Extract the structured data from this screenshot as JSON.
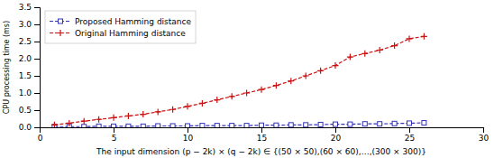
{
  "chart_data": {
    "type": "line",
    "xlabel": "The input dimension (p − 2k) × (q − 2k) ∈ {(50 × 50),(60 × 60),…,(300 × 300)}",
    "ylabel": "CPU processing time (ms)",
    "x": [
      1,
      2,
      3,
      4,
      5,
      6,
      7,
      8,
      9,
      10,
      11,
      12,
      13,
      14,
      15,
      16,
      17,
      18,
      19,
      20,
      21,
      22,
      23,
      24,
      25,
      26
    ],
    "series": [
      {
        "name": "Proposed Hamming distance",
        "color": "#3333bb",
        "marker": "square",
        "line_style": "dashed",
        "values": [
          0.02,
          0.02,
          0.02,
          0.03,
          0.03,
          0.03,
          0.03,
          0.04,
          0.04,
          0.04,
          0.05,
          0.05,
          0.05,
          0.05,
          0.06,
          0.06,
          0.07,
          0.07,
          0.08,
          0.09,
          0.09,
          0.1,
          0.1,
          0.11,
          0.12,
          0.13
        ]
      },
      {
        "name": "Original Hamming distance",
        "color": "#cc1111",
        "marker": "plus",
        "line_style": "dashed",
        "values": [
          0.07,
          0.12,
          0.18,
          0.23,
          0.28,
          0.33,
          0.38,
          0.45,
          0.52,
          0.61,
          0.7,
          0.8,
          0.9,
          1.0,
          1.1,
          1.22,
          1.35,
          1.5,
          1.65,
          1.8,
          2.05,
          2.15,
          2.25,
          2.38,
          2.58,
          2.65
        ]
      }
    ],
    "xlim": [
      0,
      30
    ],
    "ylim": [
      0,
      3.5
    ],
    "xticks": [
      0,
      5,
      10,
      15,
      20,
      25,
      30
    ],
    "yticks": [
      {
        "value": 0,
        "label": "0.0"
      },
      0.5,
      {
        "value": 1.0,
        "label": "1.0"
      },
      1.5,
      {
        "value": 2.0,
        "label": "2.0"
      },
      2.5,
      {
        "value": 3.0,
        "label": "3.0"
      },
      3.5
    ],
    "grid": false,
    "legend": "upper left"
  }
}
